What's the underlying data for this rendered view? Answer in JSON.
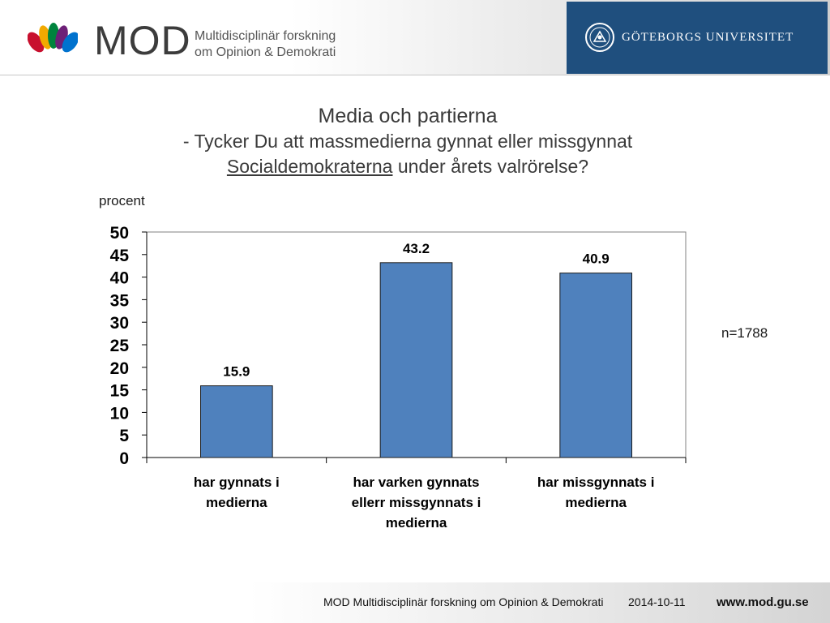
{
  "header": {
    "brand_wordmark": "MOD",
    "brand_tagline_line1": "Multidisciplinär forskning",
    "brand_tagline_line2": "om Opinion & Demokrati",
    "university_name": "GÖTEBORGS UNIVERSITET",
    "logo_icon": "flower-logo-icon",
    "seal_icon": "university-seal-icon",
    "panel_color": "#1f4f7e"
  },
  "title": {
    "line1": "Media och partierna",
    "line2": "- Tycker Du att massmedierna gynnat eller missgynnat",
    "line3_underlined": "Socialdemokraterna",
    "line3_rest": " under årets valrörelse?"
  },
  "unit_label": "procent",
  "n_label": "n=1788",
  "chart_data": {
    "type": "bar",
    "categories": [
      [
        "har gynnats i",
        "medierna"
      ],
      [
        "har varken gynnats",
        "ellerr missgynnats i",
        "medierna"
      ],
      [
        "har missgynnats i",
        "medierna"
      ]
    ],
    "values": [
      15.9,
      43.2,
      40.9
    ],
    "data_labels": [
      "15.9",
      "43.2",
      "40.9"
    ],
    "ylim": [
      0,
      50
    ],
    "yticks": [
      0,
      5,
      10,
      15,
      20,
      25,
      30,
      35,
      40,
      45,
      50
    ],
    "grid": false,
    "bar_color": "#4f81bd",
    "legend": "none"
  },
  "footer": {
    "organization": "MOD Multidisciplinär forskning om Opinion & Demokrati",
    "date": "2014-10-11",
    "url": "www.mod.gu.se"
  }
}
